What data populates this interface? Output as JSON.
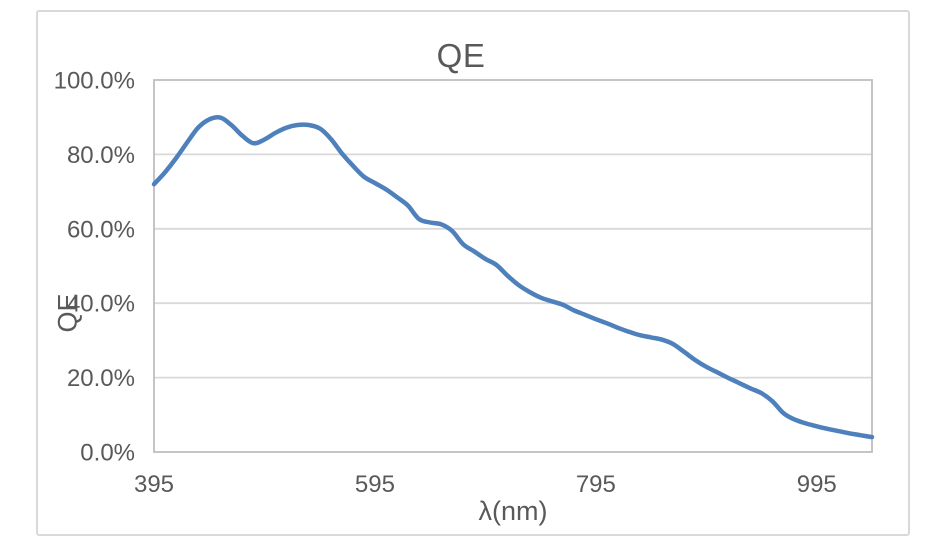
{
  "style": {
    "background": "#FFFFFF",
    "text_color": "#595959",
    "gridline_color": "#D9D9D9",
    "axis_line_color": "#BFBFBF",
    "frame_border_color": "#D9D9D9",
    "series_line_color": "#4E80BC"
  },
  "chart": {
    "title": "QE",
    "x_axis_label": "λ(nm)",
    "y_axis_label": "QE",
    "x_tick_labels": [
      "395",
      "595",
      "795",
      "995"
    ],
    "y_tick_labels": [
      "0.0%",
      "20.0%",
      "40.0%",
      "60.0%",
      "80.0%",
      "100.0%"
    ]
  },
  "chart_data": {
    "type": "line",
    "title": "QE",
    "xlabel": "λ(nm)",
    "ylabel": "QE",
    "xlim": [
      395,
      1045
    ],
    "ylim_percent": [
      0,
      100
    ],
    "x_ticks": [
      395,
      595,
      795,
      995
    ],
    "y_ticks_percent": [
      0,
      20,
      40,
      60,
      80,
      100
    ],
    "y_tick_labels": [
      "0.0%",
      "20.0%",
      "40.0%",
      "60.0%",
      "80.0%",
      "100.0%"
    ],
    "grid": true,
    "legend_position": "none",
    "line_style": "smooth",
    "series": [
      {
        "name": "QE",
        "color": "#4E80BC",
        "x": [
          395,
          405,
          415,
          425,
          435,
          445,
          455,
          465,
          475,
          485,
          495,
          505,
          515,
          525,
          535,
          545,
          555,
          565,
          575,
          585,
          595,
          605,
          615,
          625,
          635,
          645,
          655,
          665,
          675,
          685,
          695,
          705,
          715,
          725,
          735,
          745,
          755,
          765,
          775,
          785,
          795,
          805,
          815,
          825,
          835,
          845,
          855,
          865,
          875,
          885,
          895,
          905,
          915,
          925,
          935,
          945,
          955,
          965,
          975,
          985,
          995,
          1005,
          1015,
          1025,
          1035,
          1045
        ],
        "y_percent": [
          72.0,
          75.2,
          79.0,
          83.2,
          87.2,
          89.4,
          89.9,
          87.9,
          85.0,
          83.0,
          84.0,
          85.8,
          87.2,
          87.9,
          87.9,
          87.0,
          84.2,
          80.3,
          77.0,
          74.0,
          72.3,
          70.6,
          68.5,
          66.2,
          62.6,
          61.7,
          61.2,
          59.4,
          55.8,
          53.9,
          51.9,
          50.3,
          47.4,
          44.9,
          43.0,
          41.5,
          40.5,
          39.6,
          38.1,
          36.9,
          35.7,
          34.6,
          33.4,
          32.3,
          31.4,
          30.8,
          30.2,
          29.0,
          26.9,
          24.7,
          22.9,
          21.4,
          19.9,
          18.5,
          17.1,
          15.8,
          13.6,
          10.4,
          8.7,
          7.7,
          6.9,
          6.2,
          5.6,
          5.0,
          4.5,
          4.0
        ]
      }
    ]
  }
}
